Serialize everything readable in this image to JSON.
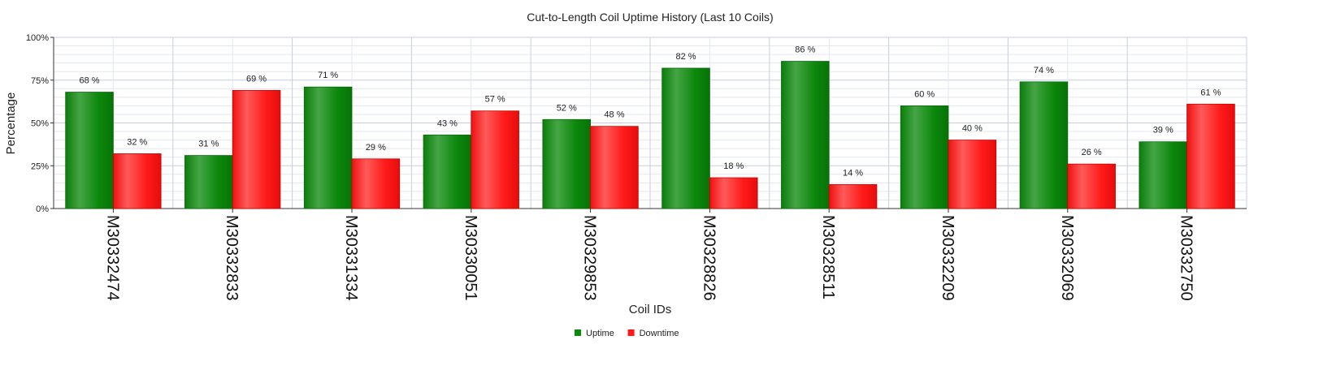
{
  "chart_data": {
    "type": "bar",
    "title": "Cut-to-Length Coil Uptime History (Last 10 Coils)",
    "xlabel": "Coil IDs",
    "ylabel": "Percentage",
    "categories": [
      "M30332474",
      "M30332833",
      "M30331334",
      "M30330051",
      "M30329853",
      "M30328826",
      "M30328511",
      "M30332209",
      "M30332069",
      "M30332750"
    ],
    "series": [
      {
        "name": "Uptime",
        "values": [
          68,
          31,
          71,
          43,
          52,
          82,
          86,
          60,
          74,
          39
        ],
        "color": "#0a8a0a"
      },
      {
        "name": "Downtime",
        "values": [
          32,
          69,
          29,
          57,
          48,
          18,
          14,
          40,
          26,
          61
        ],
        "color": "#ff1a1a"
      }
    ],
    "ylim": [
      0,
      100
    ],
    "yticks": [
      "0%",
      "25%",
      "50%",
      "75%",
      "100%"
    ],
    "value_label_suffix": " %",
    "grid": true,
    "legend_position": "bottom-center"
  }
}
